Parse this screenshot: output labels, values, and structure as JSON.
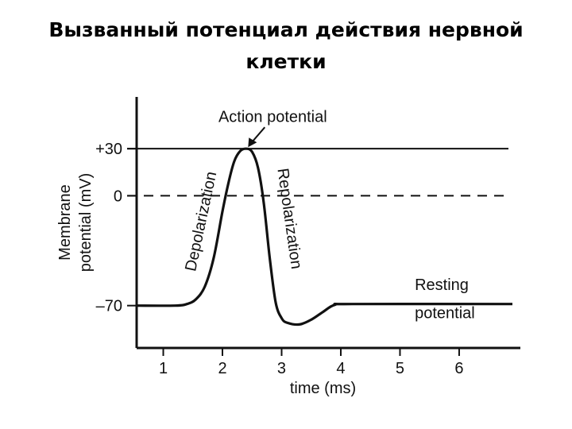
{
  "slide": {
    "title": "Вызванный потенциал действия нервной\nклетки"
  },
  "colors": {
    "ink": "#111111",
    "background": "#ffffff"
  },
  "chart_data": {
    "type": "line",
    "title": "",
    "xlabel": "time (ms)",
    "ylabel": "Membrane\npotential (mV)",
    "xlim": [
      0.55,
      6.9
    ],
    "ylim": [
      -97,
      63
    ],
    "x_ticks": [
      1,
      2,
      3,
      4,
      5,
      6
    ],
    "x_tick_labels": [
      "1",
      "2",
      "3",
      "4",
      "5",
      "6"
    ],
    "y_ticks": [
      30,
      0,
      -70
    ],
    "y_tick_labels": [
      "+30",
      "0",
      "–70"
    ],
    "reference_lines": [
      {
        "value": 30,
        "style": "solid"
      },
      {
        "value": 0,
        "style": "dashed"
      }
    ],
    "grid": false,
    "legend": "none",
    "series": [
      {
        "points": [
          [
            0.55,
            -70
          ],
          [
            1.2,
            -70
          ],
          [
            1.4,
            -69
          ],
          [
            1.55,
            -66
          ],
          [
            1.7,
            -58
          ],
          [
            1.85,
            -40
          ],
          [
            2.0,
            -10
          ],
          [
            2.1,
            8
          ],
          [
            2.2,
            22
          ],
          [
            2.3,
            28.5
          ],
          [
            2.4,
            30
          ],
          [
            2.5,
            28
          ],
          [
            2.6,
            18
          ],
          [
            2.7,
            -5
          ],
          [
            2.8,
            -40
          ],
          [
            2.9,
            -68
          ],
          [
            3.0,
            -78
          ],
          [
            3.1,
            -81
          ],
          [
            3.3,
            -82
          ],
          [
            3.5,
            -79
          ],
          [
            3.7,
            -74
          ],
          [
            3.9,
            -69.5
          ],
          [
            4.2,
            -69
          ],
          [
            6.9,
            -69
          ]
        ]
      }
    ],
    "annotations": [
      {
        "text": "Action potential",
        "x": 2.85,
        "y": 47,
        "arrow_to": [
          2.42,
          30.5
        ]
      },
      {
        "text": "Depolarization",
        "x": 1.72,
        "y": -17,
        "rotation": -78
      },
      {
        "text": "Repolarization",
        "x": 3.05,
        "y": -15,
        "rotation": 82
      },
      {
        "text": "Resting",
        "x": 5.25,
        "y": -60,
        "anchor": "start"
      },
      {
        "text": "potential",
        "x": 5.25,
        "y": -78,
        "anchor": "start"
      }
    ]
  }
}
